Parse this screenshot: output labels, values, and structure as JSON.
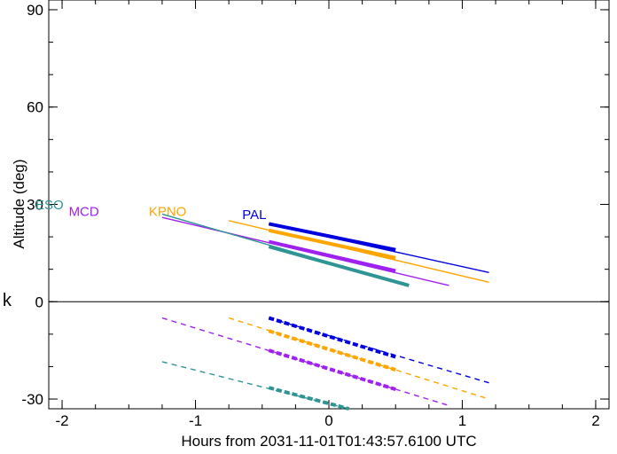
{
  "chart_data": {
    "type": "line",
    "title": "",
    "xlabel": "Hours from 2031-11-01T01:43:57.6100 UTC",
    "ylabel": "Altitude (deg)",
    "xlim": [
      -2.1,
      2.1
    ],
    "ylim": [
      -33,
      93
    ],
    "x_ticks": [
      -2,
      -1,
      0,
      1,
      2
    ],
    "y_ticks": [
      -30,
      0,
      30,
      60,
      90
    ],
    "zero_line": 0,
    "side_label": "k",
    "grid": false,
    "colors": {
      "PAL": "#0000dd",
      "KPNO": "#ffa500",
      "MCD": "#a020f0",
      "ESO": "#2e9494"
    },
    "series": [
      {
        "name": "PAL",
        "label_pos": [
          -0.65,
          25.5
        ],
        "above": {
          "x": [
            -0.45,
            1.2
          ],
          "y": [
            24,
            9
          ]
        },
        "above_thick": {
          "x": [
            -0.45,
            0.5
          ],
          "y": [
            24,
            16
          ]
        },
        "below": {
          "x": [
            -0.45,
            1.2
          ],
          "y": [
            -5,
            -25
          ]
        },
        "below_thick": {
          "x": [
            -0.45,
            0.5
          ],
          "y": [
            -5,
            -17
          ]
        }
      },
      {
        "name": "KPNO",
        "label_pos": [
          -1.35,
          26.5
        ],
        "above": {
          "x": [
            -0.75,
            1.2
          ],
          "y": [
            25,
            6
          ]
        },
        "above_thick": {
          "x": [
            -0.45,
            0.5
          ],
          "y": [
            22,
            13.5
          ]
        },
        "below": {
          "x": [
            -0.75,
            1.2
          ],
          "y": [
            -5,
            -30
          ]
        },
        "below_thick": {
          "x": [
            -0.45,
            0.5
          ],
          "y": [
            -9,
            -21
          ]
        }
      },
      {
        "name": "MCD",
        "label_pos": [
          -1.95,
          26.5
        ],
        "above": {
          "x": [
            -1.25,
            0.9
          ],
          "y": [
            26,
            5
          ]
        },
        "above_thick": {
          "x": [
            -0.45,
            0.5
          ],
          "y": [
            18.5,
            9.5
          ]
        },
        "below": {
          "x": [
            -1.25,
            0.9
          ],
          "y": [
            -5,
            -32
          ]
        },
        "below_thick": {
          "x": [
            -0.45,
            0.5
          ],
          "y": [
            -15,
            -27
          ]
        }
      },
      {
        "name": "ESO",
        "label_pos": [
          -2.2,
          28.5
        ],
        "above": {
          "x": [
            -1.25,
            0.6
          ],
          "y": [
            27,
            5
          ]
        },
        "above_thick": {
          "x": [
            -0.45,
            0.6
          ],
          "y": [
            17,
            5
          ]
        },
        "below": {
          "x": [
            -1.25,
            0.15
          ],
          "y": [
            -18.5,
            -33
          ]
        },
        "below_thick": {
          "x": [
            -0.45,
            0.15
          ],
          "y": [
            -26.5,
            -33
          ]
        }
      }
    ]
  }
}
